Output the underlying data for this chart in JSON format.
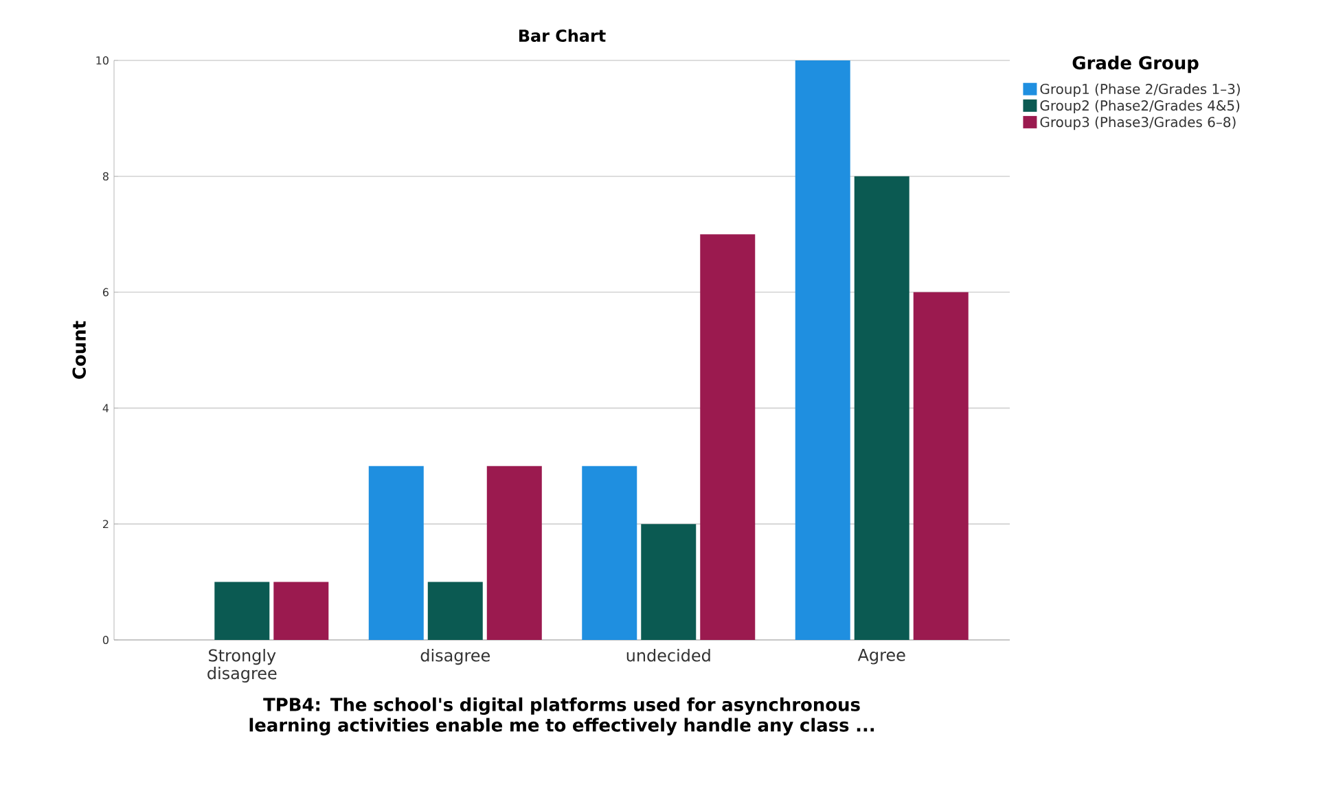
{
  "chart_data": {
    "type": "bar",
    "title": "Bar Chart",
    "xlabel": "TPB4: The school's digital platforms used for asynchronous learning activities enable me to effectively handle any class ...",
    "ylabel": "Count",
    "legend_title": "Grade Group",
    "categories": [
      "Strongly disagree",
      "disagree",
      "undecided",
      "Agree"
    ],
    "series": [
      {
        "name": "Group1 (Phase 2/Grades 1–3)",
        "color": "#1f8fe0",
        "values": [
          0,
          3,
          3,
          10
        ]
      },
      {
        "name": "Group2 (Phase2/Grades 4&5)",
        "color": "#0b5a52",
        "values": [
          1,
          1,
          2,
          8
        ]
      },
      {
        "name": "Group3 (Phase3/Grades 6–8)",
        "color": "#9b1a4f",
        "values": [
          1,
          3,
          7,
          6
        ]
      }
    ],
    "ylim": [
      0,
      10
    ],
    "yticks": [
      0,
      2,
      4,
      6,
      8,
      10
    ],
    "grid": "y",
    "legend": "right"
  }
}
